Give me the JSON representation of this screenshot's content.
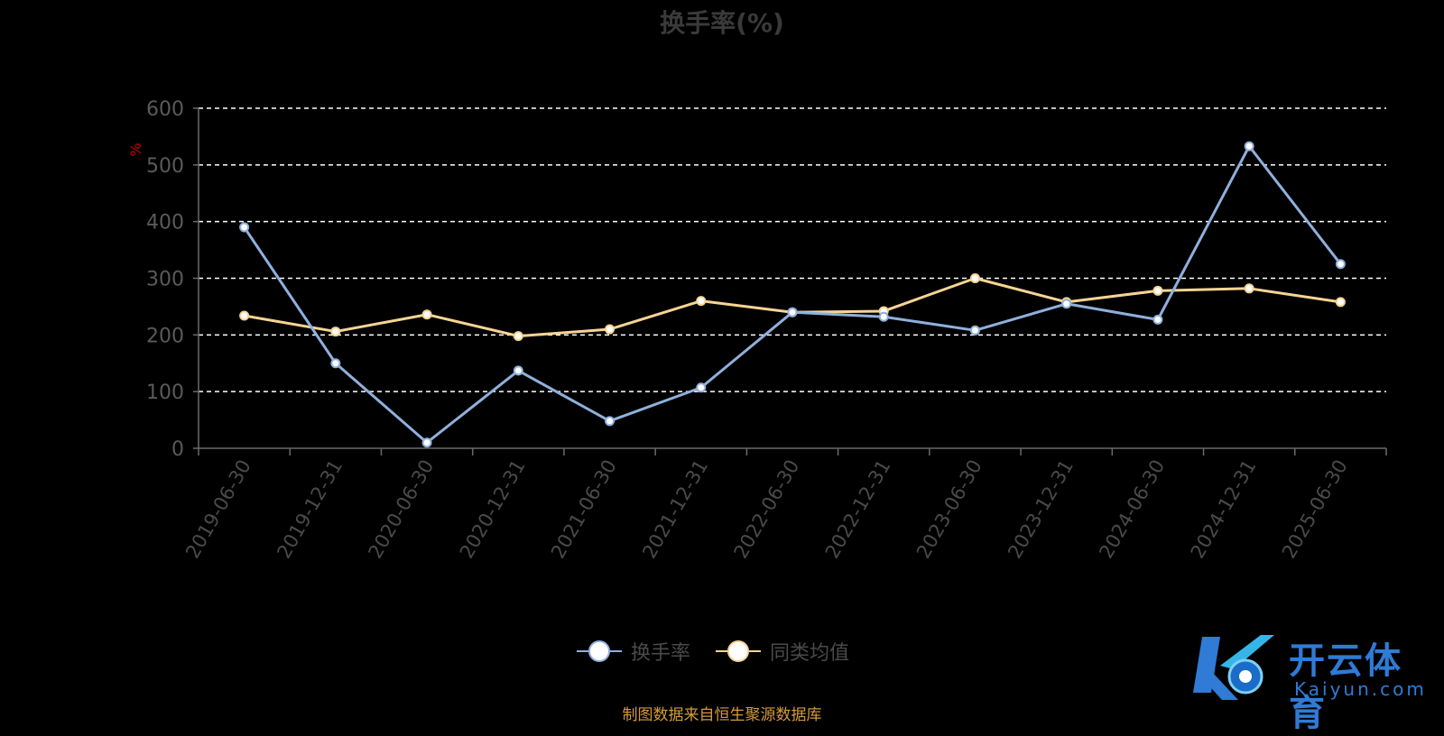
{
  "title": "换手率(%)",
  "source_note": "制图数据来自恒生聚源数据库",
  "watermark": {
    "brand": "开云体育",
    "url": "Kaiyun.com"
  },
  "colors": {
    "series1": "#8fb0dc",
    "series2": "#f7d494",
    "axis": "#6a6a6a",
    "grid": "#ffffff",
    "unit": "#cc0000"
  },
  "chart_data": {
    "type": "line",
    "title": "换手率(%)",
    "ylabel": "%",
    "xlabel": "",
    "ylim": [
      0,
      600
    ],
    "yticks": [
      0,
      100,
      200,
      300,
      400,
      500,
      600
    ],
    "grid": true,
    "legend_position": "bottom",
    "categories": [
      "2019-06-30",
      "2019-12-31",
      "2020-06-30",
      "2020-12-31",
      "2021-06-30",
      "2021-12-31",
      "2022-06-30",
      "2022-12-31",
      "2023-06-30",
      "2023-12-31",
      "2024-06-30",
      "2024-12-31",
      "2025-06-30"
    ],
    "series": [
      {
        "name": "换手率",
        "color": "#8fb0dc",
        "values": [
          390,
          150,
          10,
          137,
          48,
          107,
          240,
          232,
          208,
          255,
          227,
          533,
          325
        ]
      },
      {
        "name": "同类均值",
        "color": "#f7d494",
        "values": [
          234,
          206,
          236,
          198,
          210,
          260,
          240,
          242,
          300,
          258,
          278,
          282,
          258
        ]
      }
    ]
  }
}
